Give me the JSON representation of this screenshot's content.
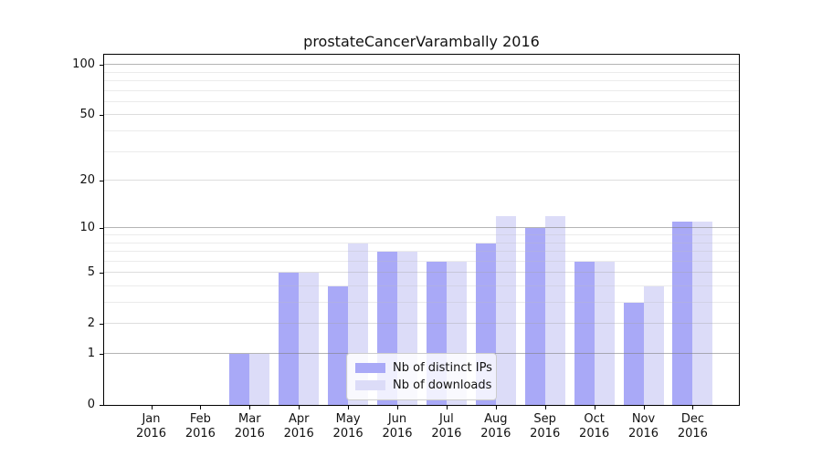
{
  "title": "prostateCancerVarambally 2016",
  "year_label": "2016",
  "legend": {
    "items": [
      {
        "label": "Nb of distinct IPs",
        "color": "#a9a9f7"
      },
      {
        "label": "Nb of downloads",
        "color": "#dcdcf8"
      }
    ]
  },
  "chart_data": {
    "type": "bar",
    "title": "prostateCancerVarambally 2016",
    "categories": [
      "Jan",
      "Feb",
      "Mar",
      "Apr",
      "May",
      "Jun",
      "Jul",
      "Aug",
      "Sep",
      "Oct",
      "Nov",
      "Dec"
    ],
    "year": "2016",
    "series": [
      {
        "name": "Nb of distinct IPs",
        "color": "#a9a9f7",
        "values": [
          0,
          0,
          1,
          5,
          4,
          7,
          6,
          8,
          10,
          6,
          3,
          11
        ]
      },
      {
        "name": "Nb of downloads",
        "color": "#dcdcf8",
        "values": [
          0,
          0,
          1,
          5,
          8,
          7,
          6,
          12,
          12,
          6,
          4,
          11
        ]
      }
    ],
    "xlabel": "",
    "ylabel": "",
    "yscale": "log1p",
    "ylim": [
      0,
      115
    ],
    "yticks": [
      0,
      1,
      2,
      5,
      10,
      20,
      50,
      100
    ],
    "yticks_strong": [
      1,
      10,
      100
    ],
    "grid_minor": [
      3,
      4,
      6,
      7,
      8,
      9,
      30,
      40,
      60,
      70,
      80,
      90
    ],
    "grid": "on",
    "legend_position": "lower center"
  }
}
